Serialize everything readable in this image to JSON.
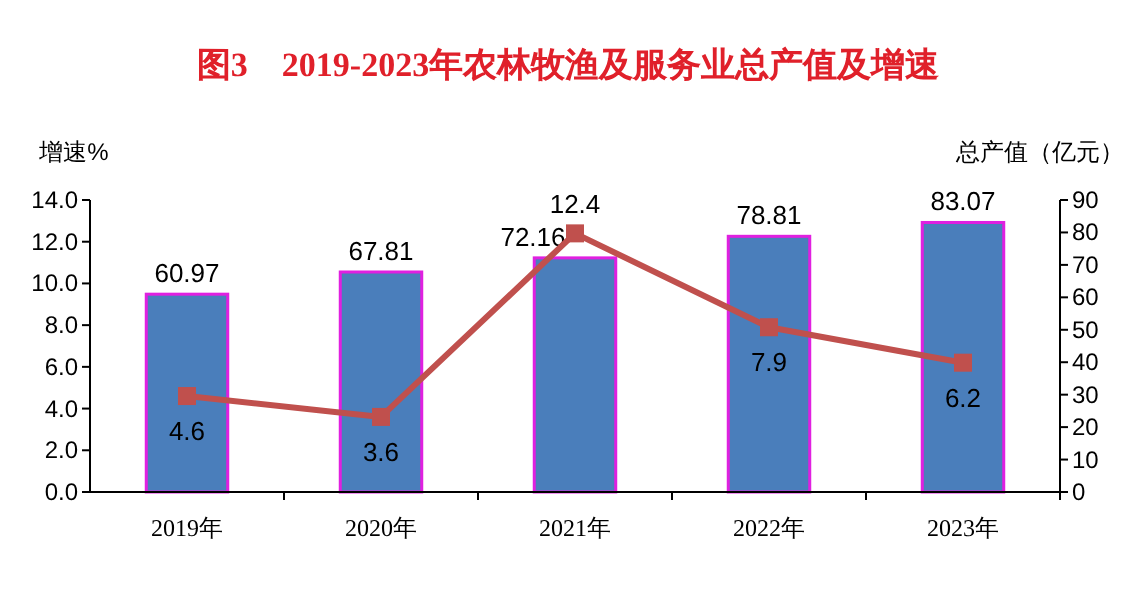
{
  "chart_data": {
    "type": "bar",
    "title": "图3　2019-2023年农林牧渔及服务业总产值及增速",
    "ylabel": "增速%",
    "y2label": "总产值（亿元）",
    "categories": [
      "2019年",
      "2020年",
      "2021年",
      "2022年",
      "2023年"
    ],
    "series": [
      {
        "axis": "y2",
        "color": "#4a7ebb",
        "values": [
          60.97,
          67.81,
          72.16,
          78.81,
          83.07
        ]
      },
      {
        "type": "line",
        "axis": "y",
        "color": "#c0504d",
        "marker": "square",
        "values": [
          4.6,
          3.6,
          12.4,
          7.9,
          6.2
        ]
      }
    ],
    "ylim": [
      0,
      14
    ],
    "yticks": [
      {
        "value": 0,
        "label": "0.0"
      },
      {
        "value": 2,
        "label": "2.0"
      },
      {
        "value": 4,
        "label": "4.0"
      },
      {
        "value": 6,
        "label": "6.0"
      },
      {
        "value": 8,
        "label": "8.0"
      },
      {
        "value": 10,
        "label": "10.0"
      },
      {
        "value": 12,
        "label": "12.0"
      },
      {
        "value": 14,
        "label": "14.0"
      }
    ],
    "y2lim": [
      0,
      90
    ],
    "y2ticks": [
      0,
      10,
      20,
      30,
      40,
      50,
      60,
      70,
      80,
      90
    ],
    "data_labels": true,
    "grid": false
  }
}
